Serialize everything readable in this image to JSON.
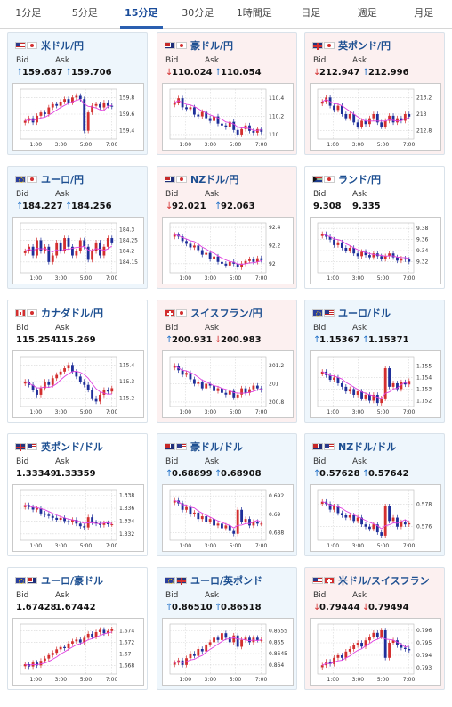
{
  "tabs": [
    {
      "label": "1分足",
      "active": false
    },
    {
      "label": "5分足",
      "active": false
    },
    {
      "label": "15分足",
      "active": true
    },
    {
      "label": "30分足",
      "active": false
    },
    {
      "label": "1時間足",
      "active": false
    },
    {
      "label": "日足",
      "active": false
    },
    {
      "label": "週足",
      "active": false
    },
    {
      "label": "月足",
      "active": false
    }
  ],
  "labels": {
    "bid": "Bid",
    "ask": "Ask"
  },
  "colors": {
    "up_arrow": "#1e6fc7",
    "down_arrow": "#d32f2f",
    "ma_line": "#e040e0",
    "candle_up": "#d32f2f",
    "candle_down": "#1f2f9a"
  },
  "pairs": [
    {
      "id": "usdjpy",
      "title": "米ドル/円",
      "flags": [
        "us",
        "jp"
      ],
      "trend": "up",
      "bid": "159.687",
      "ask": "159.706",
      "bid_dir": "up",
      "ask_dir": "up",
      "y_ticks": [
        "159.8",
        "159.6",
        "159.4"
      ],
      "x_ticks": [
        "1:00",
        "3:00",
        "5:00",
        "7:00"
      ],
      "chart_data": {
        "type": "candlestick",
        "ylim": [
          159.3,
          159.9
        ],
        "closes": [
          159.52,
          159.55,
          159.5,
          159.58,
          159.62,
          159.6,
          159.68,
          159.72,
          159.7,
          159.75,
          159.78,
          159.74,
          159.8,
          159.82,
          159.78,
          159.4,
          159.62,
          159.7,
          159.72,
          159.68,
          159.74,
          159.7,
          159.69
        ]
      }
    },
    {
      "id": "audjpy",
      "title": "豪ドル/円",
      "flags": [
        "au",
        "jp"
      ],
      "trend": "down",
      "bid": "110.024",
      "ask": "110.054",
      "bid_dir": "down",
      "ask_dir": "up",
      "y_ticks": [
        "110.4",
        "110.2",
        "110"
      ],
      "x_ticks": [
        "1:00",
        "3:00",
        "5:00",
        "7:00"
      ],
      "chart_data": {
        "type": "candlestick",
        "ylim": [
          109.95,
          110.5
        ],
        "closes": [
          110.35,
          110.4,
          110.3,
          110.28,
          110.3,
          110.22,
          110.2,
          110.25,
          110.18,
          110.15,
          110.2,
          110.12,
          110.1,
          110.08,
          110.14,
          110.05,
          110.0,
          110.06,
          110.1,
          110.04,
          110.02,
          110.06,
          110.03
        ]
      }
    },
    {
      "id": "gbpjpy",
      "title": "英ポンド/円",
      "flags": [
        "gb",
        "jp"
      ],
      "trend": "down",
      "bid": "212.947",
      "ask": "212.996",
      "bid_dir": "down",
      "ask_dir": "up",
      "y_ticks": [
        "213.2",
        "213",
        "212.8"
      ],
      "x_ticks": [
        "1:00",
        "3:00",
        "5:00",
        "7:00"
      ],
      "chart_data": {
        "type": "candlestick",
        "ylim": [
          212.7,
          213.3
        ],
        "closes": [
          213.15,
          213.2,
          213.1,
          213.05,
          213.1,
          213.0,
          212.95,
          213.0,
          212.9,
          212.85,
          212.92,
          212.88,
          212.95,
          213.0,
          212.9,
          212.85,
          212.92,
          212.98,
          212.9,
          212.95,
          212.92,
          213.0,
          212.97
        ]
      }
    },
    {
      "id": "eurjpy",
      "title": "ユーロ/円",
      "flags": [
        "eu",
        "jp"
      ],
      "trend": "up",
      "bid": "184.227",
      "ask": "184.256",
      "bid_dir": "up",
      "ask_dir": "up",
      "y_ticks": [
        "184.3",
        "184.25",
        "184.2",
        "184.15"
      ],
      "x_ticks": [
        "1:00",
        "3:00",
        "5:00",
        "7:00"
      ],
      "chart_data": {
        "type": "candlestick",
        "ylim": [
          184.1,
          184.33
        ],
        "closes": [
          184.2,
          184.22,
          184.18,
          184.25,
          184.2,
          184.22,
          184.15,
          184.18,
          184.24,
          184.2,
          184.26,
          184.22,
          184.18,
          184.2,
          184.25,
          184.22,
          184.16,
          184.2,
          184.24,
          184.18,
          184.22,
          184.26,
          184.24
        ]
      }
    },
    {
      "id": "nzdjpy",
      "title": "NZドル/円",
      "flags": [
        "nz",
        "jp"
      ],
      "trend": "down",
      "bid": "92.021",
      "ask": "92.063",
      "bid_dir": "down",
      "ask_dir": "up",
      "y_ticks": [
        "92.4",
        "92.2",
        "92"
      ],
      "x_ticks": [
        "1:00",
        "3:00",
        "5:00",
        "7:00"
      ],
      "chart_data": {
        "type": "candlestick",
        "ylim": [
          91.9,
          92.45
        ],
        "closes": [
          92.32,
          92.3,
          92.25,
          92.22,
          92.18,
          92.2,
          92.15,
          92.1,
          92.12,
          92.05,
          92.08,
          92.02,
          92.0,
          91.98,
          92.02,
          92.0,
          91.96,
          92.0,
          92.03,
          92.05,
          92.02,
          92.06,
          92.04
        ]
      }
    },
    {
      "id": "zarjpy",
      "title": "ランド/円",
      "flags": [
        "za",
        "jp"
      ],
      "trend": "flat",
      "bid": "9.308",
      "ask": "9.335",
      "bid_dir": "none",
      "ask_dir": "none",
      "y_ticks": [
        "9.38",
        "9.36",
        "9.34",
        "9.32"
      ],
      "x_ticks": [
        "1:00",
        "3:00",
        "5:00",
        "7:00"
      ],
      "chart_data": {
        "type": "candlestick",
        "ylim": [
          9.3,
          9.39
        ],
        "closes": [
          9.37,
          9.365,
          9.36,
          9.35,
          9.355,
          9.345,
          9.34,
          9.345,
          9.335,
          9.33,
          9.338,
          9.332,
          9.328,
          9.335,
          9.33,
          9.325,
          9.33,
          9.335,
          9.328,
          9.322,
          9.326,
          9.324,
          9.32
        ]
      }
    },
    {
      "id": "cadjpy",
      "title": "カナダドル/円",
      "flags": [
        "ca",
        "jp"
      ],
      "trend": "flat",
      "bid": "115.254",
      "ask": "115.269",
      "bid_dir": "none",
      "ask_dir": "none",
      "y_ticks": [
        "115.4",
        "115.3",
        "115.2"
      ],
      "x_ticks": [
        "1:00",
        "3:00",
        "5:00",
        "7:00"
      ],
      "chart_data": {
        "type": "candlestick",
        "ylim": [
          115.15,
          115.45
        ],
        "closes": [
          115.3,
          115.28,
          115.25,
          115.22,
          115.26,
          115.3,
          115.28,
          115.32,
          115.34,
          115.36,
          115.38,
          115.4,
          115.36,
          115.33,
          115.3,
          115.28,
          115.25,
          115.2,
          115.18,
          115.22,
          115.25,
          115.24,
          115.26
        ]
      }
    },
    {
      "id": "chfjpy",
      "title": "スイスフラン/円",
      "flags": [
        "ch",
        "jp"
      ],
      "trend": "down",
      "bid": "200.931",
      "ask": "200.983",
      "bid_dir": "up",
      "ask_dir": "down",
      "y_ticks": [
        "201.2",
        "201",
        "200.8"
      ],
      "x_ticks": [
        "1:00",
        "3:00",
        "5:00",
        "7:00"
      ],
      "chart_data": {
        "type": "candlestick",
        "ylim": [
          200.75,
          201.3
        ],
        "closes": [
          201.2,
          201.15,
          201.1,
          201.12,
          201.05,
          201.0,
          201.02,
          200.95,
          201.0,
          200.98,
          200.92,
          200.95,
          200.9,
          200.88,
          200.92,
          200.85,
          200.88,
          200.95,
          200.9,
          200.94,
          200.98,
          200.95,
          200.93
        ]
      }
    },
    {
      "id": "eurusd",
      "title": "ユーロ/ドル",
      "flags": [
        "eu",
        "us"
      ],
      "trend": "up",
      "bid": "1.15367",
      "ask": "1.15371",
      "bid_dir": "up",
      "ask_dir": "up",
      "y_ticks": [
        "1.155",
        "1.154",
        "1.153",
        "1.152"
      ],
      "x_ticks": [
        "1:00",
        "3:00",
        "5:00",
        "7:00"
      ],
      "chart_data": {
        "type": "candlestick",
        "ylim": [
          1.1515,
          1.1558
        ],
        "closes": [
          1.1545,
          1.1542,
          1.1538,
          1.154,
          1.1535,
          1.1532,
          1.1528,
          1.153,
          1.1525,
          1.1528,
          1.1522,
          1.1525,
          1.152,
          1.1525,
          1.1518,
          1.1522,
          1.1548,
          1.1532,
          1.1535,
          1.153,
          1.1536,
          1.1534,
          1.1537
        ]
      }
    },
    {
      "id": "gbpusd",
      "title": "英ポンド/ドル",
      "flags": [
        "gb",
        "us"
      ],
      "trend": "flat",
      "bid": "1.33349",
      "ask": "1.33359",
      "bid_dir": "none",
      "ask_dir": "none",
      "y_ticks": [
        "1.338",
        "1.336",
        "1.334",
        "1.332"
      ],
      "x_ticks": [
        "1:00",
        "3:00",
        "5:00",
        "7:00"
      ],
      "chart_data": {
        "type": "candlestick",
        "ylim": [
          1.331,
          1.3388
        ],
        "closes": [
          1.3365,
          1.3362,
          1.3358,
          1.336,
          1.3352,
          1.335,
          1.3348,
          1.3345,
          1.3342,
          1.3345,
          1.334,
          1.3338,
          1.3342,
          1.3336,
          1.3332,
          1.333,
          1.3346,
          1.3338,
          1.3336,
          1.3334,
          1.3337,
          1.3335,
          1.3335
        ]
      }
    },
    {
      "id": "audusd",
      "title": "豪ドル/ドル",
      "flags": [
        "au",
        "us"
      ],
      "trend": "up",
      "bid": "0.68899",
      "ask": "0.68908",
      "bid_dir": "up",
      "ask_dir": "up",
      "y_ticks": [
        "0.692",
        "0.69",
        "0.688"
      ],
      "x_ticks": [
        "1:00",
        "3:00",
        "5:00",
        "7:00"
      ],
      "chart_data": {
        "type": "candlestick",
        "ylim": [
          0.6872,
          0.6926
        ],
        "closes": [
          0.6915,
          0.6912,
          0.6905,
          0.6908,
          0.69,
          0.6902,
          0.6895,
          0.6898,
          0.6892,
          0.6895,
          0.6888,
          0.689,
          0.6885,
          0.6888,
          0.6882,
          0.6879,
          0.6905,
          0.6892,
          0.6895,
          0.6888,
          0.6892,
          0.689,
          0.689
        ]
      }
    },
    {
      "id": "nzdusd",
      "title": "NZドル/ドル",
      "flags": [
        "nz",
        "us"
      ],
      "trend": "up",
      "bid": "0.57628",
      "ask": "0.57642",
      "bid_dir": "up",
      "ask_dir": "up",
      "y_ticks": [
        "0.578",
        "0.576"
      ],
      "x_ticks": [
        "1:00",
        "3:00",
        "5:00",
        "7:00"
      ],
      "chart_data": {
        "type": "candlestick",
        "ylim": [
          0.5748,
          0.5792
        ],
        "closes": [
          0.5782,
          0.578,
          0.5775,
          0.5778,
          0.5772,
          0.577,
          0.5768,
          0.577,
          0.5765,
          0.5768,
          0.5762,
          0.576,
          0.5758,
          0.5762,
          0.5755,
          0.5752,
          0.5778,
          0.5765,
          0.5768,
          0.576,
          0.5764,
          0.5762,
          0.5763
        ]
      }
    },
    {
      "id": "euraud",
      "title": "ユーロ/豪ドル",
      "flags": [
        "eu",
        "au"
      ],
      "trend": "flat",
      "bid": "1.67428",
      "ask": "1.67442",
      "bid_dir": "none",
      "ask_dir": "none",
      "y_ticks": [
        "1.674",
        "1.672",
        "1.67",
        "1.668"
      ],
      "x_ticks": [
        "1:00",
        "3:00",
        "5:00",
        "7:00"
      ],
      "chart_data": {
        "type": "candlestick",
        "ylim": [
          1.6665,
          1.6752
        ],
        "closes": [
          1.6682,
          1.6678,
          1.6685,
          1.668,
          1.6688,
          1.6692,
          1.6698,
          1.6702,
          1.6708,
          1.6712,
          1.671,
          1.6718,
          1.6722,
          1.6725,
          1.672,
          1.6728,
          1.6735,
          1.673,
          1.6738,
          1.6742,
          1.6736,
          1.674,
          1.6743
        ]
      }
    },
    {
      "id": "eurgbp",
      "title": "ユーロ/英ポンド",
      "flags": [
        "eu",
        "gb"
      ],
      "trend": "up",
      "bid": "0.86510",
      "ask": "0.86518",
      "bid_dir": "up",
      "ask_dir": "up",
      "y_ticks": [
        "0.8655",
        "0.865",
        "0.8645",
        "0.864"
      ],
      "x_ticks": [
        "1:00",
        "3:00",
        "5:00",
        "7:00"
      ],
      "chart_data": {
        "type": "candlestick",
        "ylim": [
          0.8636,
          0.8658
        ],
        "closes": [
          0.8641,
          0.8642,
          0.864,
          0.8643,
          0.8645,
          0.8644,
          0.8647,
          0.8646,
          0.8649,
          0.865,
          0.8652,
          0.8651,
          0.8654,
          0.8652,
          0.865,
          0.8653,
          0.8648,
          0.8651,
          0.8652,
          0.865,
          0.8652,
          0.8651,
          0.8651
        ]
      }
    },
    {
      "id": "usdchf",
      "title": "米ドル/スイスフラン",
      "flags": [
        "us",
        "ch"
      ],
      "trend": "down",
      "bid": "0.79444",
      "ask": "0.79494",
      "bid_dir": "down",
      "ask_dir": "down",
      "y_ticks": [
        "0.796",
        "0.795",
        "0.794",
        "0.793"
      ],
      "x_ticks": [
        "1:00",
        "3:00",
        "5:00",
        "7:00"
      ],
      "chart_data": {
        "type": "candlestick",
        "ylim": [
          0.7925,
          0.7965
        ],
        "closes": [
          0.7932,
          0.7935,
          0.7933,
          0.7938,
          0.794,
          0.7938,
          0.7943,
          0.7945,
          0.7948,
          0.795,
          0.7947,
          0.7952,
          0.7955,
          0.7958,
          0.7955,
          0.796,
          0.7938,
          0.795,
          0.7952,
          0.7948,
          0.7946,
          0.7945,
          0.7944
        ]
      }
    }
  ]
}
